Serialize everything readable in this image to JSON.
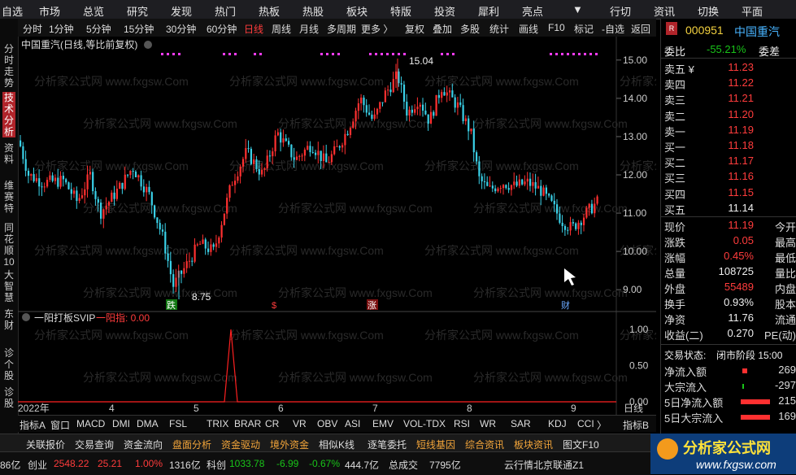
{
  "topbar": {
    "items": [
      "自选",
      "市场",
      "总览",
      "研究",
      "发现",
      "热门",
      "热板",
      "热股",
      "板块",
      "特版",
      "投资",
      "犀利",
      "亮点",
      "▼",
      "行切",
      "资讯",
      "切换",
      "平面"
    ]
  },
  "sidebar": {
    "items": [
      "分时走势",
      "技术分析",
      "资料",
      "维赛特",
      "同花顺10",
      "大智慧",
      "东财",
      "诊个股",
      "诊股"
    ]
  },
  "timeframes": [
    "分时",
    "1分钟",
    "5分钟",
    "15分钟",
    "30分钟",
    "60分钟",
    "日线",
    "周线",
    "月线",
    "多周期",
    "更多 〉"
  ],
  "toolbar2": [
    "复权",
    "叠加",
    "多股",
    "统计",
    "画线",
    "F10",
    "标记",
    "-自选",
    "返回"
  ],
  "chart": {
    "title": "中国重汽(日线,等比前复权)",
    "high_label": "15.04",
    "low_label": "8.75",
    "y_ticks": [
      "15.00",
      "14.00",
      "13.00",
      "12.00",
      "11.00",
      "10.00",
      "9.00"
    ],
    "event_markers": [
      "跌",
      "$",
      "涨",
      "财"
    ],
    "indicator_name": "一阳打板SVIP",
    "indicator_value_label": "一阳指: 0.00",
    "indicator_ticks": [
      "1.00",
      "0.50",
      "0.00"
    ],
    "x_labels": [
      "2022年",
      "4",
      "5",
      "6",
      "7",
      "8",
      "9",
      "日线"
    ],
    "watermark": "分析家公式网 www.fxgsw.Com"
  },
  "chart_data": {
    "type": "candlestick",
    "title": "中国重汽(日线,等比前复权)",
    "ylim": [
      8.6,
      15.4
    ],
    "high": 15.04,
    "low": 8.75,
    "indicator": {
      "name": "一阳打板SVIP",
      "value": 0.0,
      "ylim": [
        0,
        1.0
      ],
      "peak": 1.0
    }
  },
  "stock": {
    "code": "000951",
    "name": "中国重汽",
    "weibi_label": "委比",
    "weibi": "-55.21%",
    "weicha_label": "委差"
  },
  "orderbook": [
    {
      "label": "卖五 ¥",
      "price": "11.23",
      "vol": ""
    },
    {
      "label": "卖四",
      "price": "11.22",
      "vol": ""
    },
    {
      "label": "卖三",
      "price": "11.21",
      "vol": ""
    },
    {
      "label": "卖二",
      "price": "11.20",
      "vol": ""
    },
    {
      "label": "卖一",
      "price": "11.19",
      "vol": ""
    },
    {
      "label": "买一",
      "price": "11.18",
      "vol": ""
    },
    {
      "label": "买二",
      "price": "11.17",
      "vol": ""
    },
    {
      "label": "买三",
      "price": "11.16",
      "vol": ""
    },
    {
      "label": "买四",
      "price": "11.15",
      "vol": ""
    },
    {
      "label": "买五",
      "price": "11.14",
      "vol": ""
    }
  ],
  "quote": [
    {
      "label": "现价",
      "value": "11.19",
      "label2": "今开"
    },
    {
      "label": "涨跌",
      "value": "0.05",
      "label2": "最高"
    },
    {
      "label": "涨幅",
      "value": "0.45%",
      "label2": "最低"
    },
    {
      "label": "总量",
      "value": "108725",
      "label2": "量比"
    },
    {
      "label": "外盘",
      "value": "55489",
      "label2": "内盘"
    },
    {
      "label": "换手",
      "value": "0.93%",
      "label2": "股本"
    },
    {
      "label": "净资",
      "value": "11.76",
      "label2": "流通"
    },
    {
      "label": "收益(二)",
      "value": "0.270",
      "label2": "PE(动)"
    }
  ],
  "trade_state": {
    "label": "交易状态:",
    "value": "闭市阶段 15:00"
  },
  "flows": [
    {
      "label": "净流入额",
      "value": "269"
    },
    {
      "label": "大宗流入",
      "value": "-297"
    },
    {
      "label": "5日净流入额",
      "value": "215"
    },
    {
      "label": "5日大宗流入",
      "value": "169"
    }
  ],
  "indicator_bar": [
    "指标A",
    "窗口",
    "MACD",
    "DMI",
    "DMA",
    "FSL",
    "TRIX",
    "BRAR",
    "CR",
    "VR",
    "OBV",
    "ASI",
    "EMV",
    "VOL-TDX",
    "RSI",
    "WR",
    "SAR",
    "KDJ",
    "CCI",
    "〉",
    "指标B",
    "模",
    "板",
    "+"
  ],
  "bottom_bar": [
    "关联报价",
    "交易查询",
    "资金流向",
    "盘面分析",
    "资金驱动",
    "境外资金",
    "相似K线",
    "逐笔委托",
    "短线基因",
    "综合资讯",
    "板块资讯",
    "图文F10"
  ],
  "status": {
    "items": [
      "86亿",
      "创业",
      "2548.22",
      "25.21",
      "1.00%",
      "1316亿",
      "科创",
      "1033.78",
      "-6.99",
      "-0.67%",
      "444.7亿",
      "总成交",
      "7795亿",
      "云行情北京联通Z1"
    ]
  },
  "logo": {
    "cn": "分析家公式网",
    "url": "www.fxgsw.com"
  }
}
